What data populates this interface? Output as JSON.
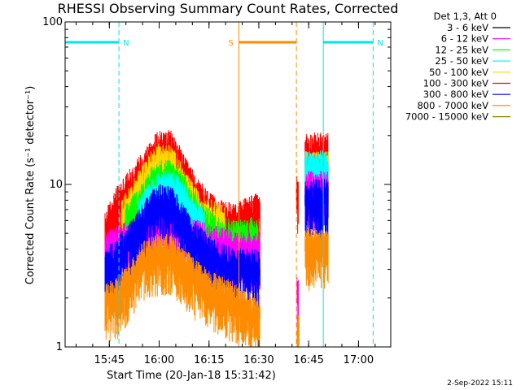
{
  "chart_data": {
    "type": "line",
    "title": "RHESSI Observing Summary Count Rates, Corrected",
    "xlabel": "Start Time (20-Jan-18 15:31:42)",
    "ylabel": "Corrected Count Rate (s⁻¹ detector⁻¹)",
    "y_scale": "log",
    "ylim": [
      1,
      100
    ],
    "y_ticks": [
      "1",
      "10",
      "100"
    ],
    "x_range_min": [
      0,
      98
    ],
    "x_ticks": [
      {
        "label": "15:45",
        "min": 13.3
      },
      {
        "label": "16:00",
        "min": 28.3
      },
      {
        "label": "16:15",
        "min": 43.3
      },
      {
        "label": "16:30",
        "min": 58.3
      },
      {
        "label": "16:45",
        "min": 73.3
      },
      {
        "label": "17:00",
        "min": 88.3
      }
    ],
    "legend_header": "Det 1,3, Att 0",
    "legend_position": "right",
    "series": [
      {
        "name": "3 - 6 keV",
        "color": "#000000"
      },
      {
        "name": "6 - 12 keV",
        "color": "#ff00ff"
      },
      {
        "name": "12 - 25 keV",
        "color": "#00ff00"
      },
      {
        "name": "25 - 50 keV",
        "color": "#00ffff"
      },
      {
        "name": "50 - 100 keV",
        "color": "#ffd700"
      },
      {
        "name": "100 - 300 keV",
        "color": "#ff0000"
      },
      {
        "name": "300 - 800 keV",
        "color": "#0000ff"
      },
      {
        "name": "800 - 7000 keV",
        "color": "#ff8c00"
      },
      {
        "name": "7000 - 15000 keV",
        "color": "#8b8b00"
      }
    ],
    "plotted_bands": [
      {
        "color": "#ff0000",
        "segments": [
          {
            "x": [
              12,
              16,
              20,
              24,
              28,
              32,
              36,
              40,
              44,
              48,
              52,
              56,
              58.7
            ],
            "y": [
              5.0,
              7.5,
              9.5,
              12.5,
              16.0,
              16.0,
              11.0,
              8.0,
              6.5,
              5.8,
              5.8,
              6.5,
              6.5
            ]
          },
          {
            "x": [
              69.6,
              70.2
            ],
            "y": [
              8.5,
              8.5
            ]
          },
          {
            "x": [
              72.2,
              79.2
            ],
            "y": [
              15.5,
              15.5
            ]
          }
        ]
      },
      {
        "color": "#ffd700",
        "segments": [
          {
            "x": [
              17,
              20,
              24,
              28,
              32,
              36,
              40,
              44,
              48
            ],
            "y": [
              6.0,
              7.5,
              10.5,
              13.5,
              13.0,
              9.0,
              6.8,
              6.0,
              5.5
            ]
          },
          {
            "x": [
              72.2,
              79.2
            ],
            "y": [
              12.0,
              12.0
            ]
          }
        ]
      },
      {
        "color": "#00ff00",
        "segments": [
          {
            "x": [
              18,
              22,
              26,
              30,
              34,
              38,
              42,
              46,
              52,
              58
            ],
            "y": [
              5.5,
              7.0,
              9.5,
              11.0,
              10.0,
              7.0,
              5.5,
              4.8,
              4.5,
              4.8
            ]
          },
          {
            "x": [
              72.2,
              79.2
            ],
            "y": [
              11.0,
              11.0
            ]
          }
        ]
      },
      {
        "color": "#00ffff",
        "segments": [
          {
            "x": [
              22,
              26,
              30,
              34,
              38,
              42
            ],
            "y": [
              6.0,
              8.0,
              9.5,
              8.5,
              6.5,
              5.0
            ]
          },
          {
            "x": [
              72.2,
              79.2
            ],
            "y": [
              12.0,
              12.0
            ]
          }
        ]
      },
      {
        "color": "#ff00ff",
        "segments": [
          {
            "x": [
              12,
              20,
              28,
              36,
              44,
              52,
              58.7
            ],
            "y": [
              3.8,
              4.5,
              5.5,
              4.8,
              4.2,
              3.8,
              3.8
            ]
          },
          {
            "x": [
              69.8,
              70.2
            ],
            "y": [
              2.0,
              2.0
            ]
          },
          {
            "x": [
              72.2,
              79.2
            ],
            "y": [
              9.0,
              9.0
            ]
          }
        ]
      },
      {
        "color": "#0000ff",
        "segments": [
          {
            "x": [
              12,
              16,
              20,
              24,
              28,
              32,
              36,
              40,
              44,
              48,
              52,
              56,
              58.7
            ],
            "y": [
              3.0,
              3.6,
              4.5,
              6.0,
              7.5,
              7.2,
              5.5,
              4.2,
              3.5,
              3.2,
              3.0,
              3.0,
              3.0
            ]
          },
          {
            "x": [
              72.2,
              79.2
            ],
            "y": [
              8.0,
              8.0
            ]
          }
        ]
      },
      {
        "color": "#ff8c00",
        "segments": [
          {
            "x": [
              12,
              16,
              20,
              24,
              28,
              32,
              36,
              40,
              44,
              48,
              52,
              56,
              58.7
            ],
            "y": [
              1.8,
              2.0,
              2.6,
              3.4,
              3.7,
              3.7,
              3.0,
              2.5,
              2.2,
              2.0,
              1.8,
              1.6,
              1.6
            ]
          },
          {
            "x": [
              69.8,
              70.4
            ],
            "y": [
              1.2,
              1.2
            ]
          },
          {
            "x": [
              72.2,
              79.2
            ],
            "y": [
              4.0,
              4.0
            ]
          }
        ]
      }
    ],
    "markers": [
      {
        "label": "N",
        "color": "#00e5ee",
        "level": 75,
        "bar_min": [
          0,
          16.2
        ],
        "lines_min": [
          0,
          16.2
        ]
      },
      {
        "label": "N",
        "color": "#00e5ee",
        "level": 75,
        "bar_min": [
          77.7,
          92.7
        ],
        "lines_min": [
          77.7,
          92.7
        ]
      },
      {
        "label": "S",
        "color": "#ff8c00",
        "level": 75,
        "bar_min": [
          52.3,
          69.6
        ],
        "lines_min": [
          52.3,
          69.6
        ]
      }
    ]
  },
  "footer_date": "2-Sep-2022 15:11"
}
